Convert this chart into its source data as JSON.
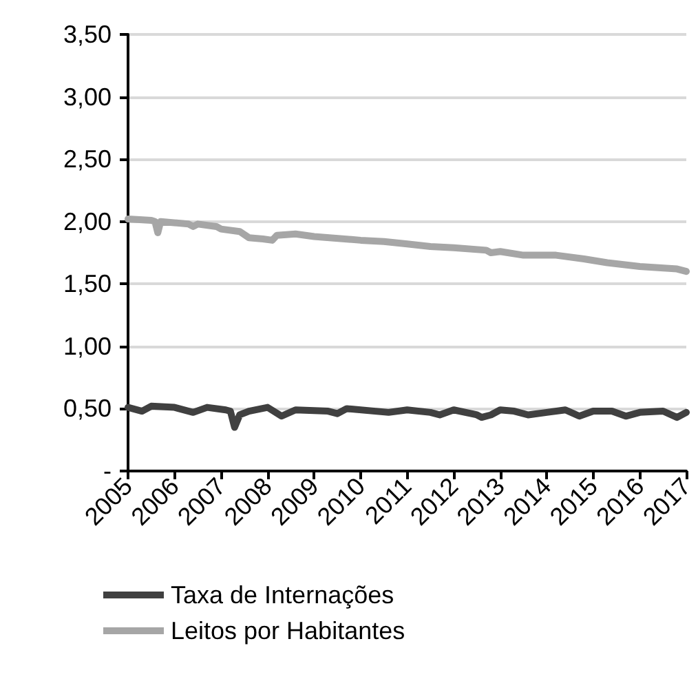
{
  "chart_data": {
    "type": "line",
    "xlim": [
      2005,
      2017
    ],
    "xticks": [
      2005,
      2006,
      2007,
      2008,
      2009,
      2010,
      2011,
      2012,
      2013,
      2014,
      2015,
      2016,
      2017
    ],
    "ylim": [
      0,
      3.5
    ],
    "yticks": [
      {
        "value": 0,
        "label": "-"
      },
      {
        "value": 0.5,
        "label": "0,50"
      },
      {
        "value": 1,
        "label": "1,00"
      },
      {
        "value": 1.5,
        "label": "1,50"
      },
      {
        "value": 2,
        "label": "2,00"
      },
      {
        "value": 2.5,
        "label": "2,50"
      },
      {
        "value": 3,
        "label": "3,00"
      },
      {
        "value": 3.5,
        "label": "3,50"
      }
    ],
    "grid": "y",
    "legend": "bottom",
    "marker": "none",
    "line_style": "solid",
    "series": [
      {
        "name": "Taxa de Internações",
        "color": "#404040",
        "x": [
          2005,
          2005.3,
          2005.5,
          2006,
          2006.4,
          2006.7,
          2007.1,
          2007.2,
          2007.29,
          2007.4,
          2007.6,
          2008,
          2008.3,
          2008.6,
          2009.3,
          2009.5,
          2009.7,
          2010.6,
          2011,
          2011.5,
          2011.7,
          2012,
          2012.5,
          2012.6,
          2012.8,
          2013,
          2013.3,
          2013.6,
          2014,
          2014.4,
          2014.7,
          2015,
          2015.4,
          2015.7,
          2016,
          2016.5,
          2016.8,
          2017
        ],
        "values": [
          0.51,
          0.48,
          0.52,
          0.51,
          0.47,
          0.51,
          0.49,
          0.48,
          0.35,
          0.45,
          0.48,
          0.51,
          0.44,
          0.49,
          0.48,
          0.46,
          0.5,
          0.47,
          0.49,
          0.47,
          0.45,
          0.49,
          0.45,
          0.43,
          0.45,
          0.49,
          0.48,
          0.45,
          0.47,
          0.49,
          0.44,
          0.48,
          0.48,
          0.44,
          0.47,
          0.48,
          0.43,
          0.47
        ]
      },
      {
        "name": "Leitos por Habitantes",
        "color": "#a6a6a6",
        "x": [
          2005,
          2005.5,
          2005.58,
          2005.64,
          2005.7,
          2006.3,
          2006.4,
          2006.5,
          2006.9,
          2007,
          2007.4,
          2007.6,
          2007.9,
          2008.1,
          2008.2,
          2008.6,
          2009,
          2010,
          2010.5,
          2011,
          2011.5,
          2012,
          2012.7,
          2012.8,
          2013,
          2013.5,
          2014.2,
          2014.8,
          2015.3,
          2016,
          2016.8,
          2017
        ],
        "values": [
          2.02,
          2.01,
          2.0,
          1.91,
          2.0,
          1.98,
          1.96,
          1.98,
          1.96,
          1.94,
          1.92,
          1.87,
          1.86,
          1.85,
          1.89,
          1.9,
          1.88,
          1.85,
          1.84,
          1.82,
          1.8,
          1.79,
          1.77,
          1.75,
          1.76,
          1.73,
          1.73,
          1.7,
          1.67,
          1.64,
          1.62,
          1.6
        ]
      }
    ]
  }
}
